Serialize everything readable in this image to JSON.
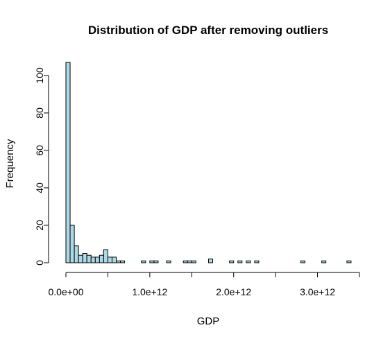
{
  "chart_data": {
    "type": "bar",
    "title": "Distribution of GDP after removing outliers",
    "xlabel": "GDP",
    "ylabel": "Frequency",
    "xlim": [
      0,
      3500000000000.0
    ],
    "ylim": [
      0,
      107
    ],
    "bin_width": 50000000000.0,
    "x_ticks": [
      0,
      500000000000.0,
      1000000000000.0,
      1500000000000.0,
      2000000000000.0,
      2500000000000.0,
      3000000000000.0,
      3500000000000.0
    ],
    "x_tick_labels": [
      {
        "value": 0,
        "label": "0.0e+00"
      },
      {
        "value": 1000000000000.0,
        "label": "1.0e+12"
      },
      {
        "value": 2000000000000.0,
        "label": "2.0e+12"
      },
      {
        "value": 3000000000000.0,
        "label": "3.0e+12"
      }
    ],
    "y_ticks": [
      {
        "value": 0,
        "label": "0"
      },
      {
        "value": 20,
        "label": "20"
      },
      {
        "value": 40,
        "label": "40"
      },
      {
        "value": 60,
        "label": "60"
      },
      {
        "value": 80,
        "label": "80"
      },
      {
        "value": 100,
        "label": "100"
      }
    ],
    "bin_starts": [
      0,
      50000000000.0,
      100000000000.0,
      150000000000.0,
      200000000000.0,
      250000000000.0,
      300000000000.0,
      350000000000.0,
      400000000000.0,
      450000000000.0,
      500000000000.0,
      550000000000.0,
      600000000000.0,
      650000000000.0,
      700000000000.0,
      750000000000.0,
      800000000000.0,
      850000000000.0,
      900000000000.0,
      950000000000.0,
      1000000000000.0,
      1050000000000.0,
      1100000000000.0,
      1150000000000.0,
      1200000000000.0,
      1250000000000.0,
      1300000000000.0,
      1350000000000.0,
      1400000000000.0,
      1450000000000.0,
      1500000000000.0,
      1550000000000.0,
      1600000000000.0,
      1650000000000.0,
      1700000000000.0,
      1750000000000.0,
      1800000000000.0,
      1850000000000.0,
      1900000000000.0,
      1950000000000.0,
      2000000000000.0,
      2050000000000.0,
      2100000000000.0,
      2150000000000.0,
      2200000000000.0,
      2250000000000.0,
      2300000000000.0,
      2350000000000.0,
      2400000000000.0,
      2450000000000.0,
      2500000000000.0,
      2550000000000.0,
      2600000000000.0,
      2650000000000.0,
      2700000000000.0,
      2750000000000.0,
      2800000000000.0,
      2850000000000.0,
      2900000000000.0,
      2950000000000.0,
      3000000000000.0,
      3050000000000.0,
      3100000000000.0,
      3150000000000.0,
      3200000000000.0,
      3250000000000.0,
      3300000000000.0,
      3350000000000.0
    ],
    "values": [
      107,
      20,
      9,
      4,
      5,
      4,
      3,
      3,
      4,
      7,
      3,
      3,
      1,
      1,
      0,
      0,
      0,
      0,
      1,
      0,
      1,
      1,
      0,
      0,
      1,
      0,
      0,
      0,
      1,
      1,
      1,
      0,
      0,
      0,
      2,
      0,
      0,
      0,
      0,
      1,
      0,
      1,
      0,
      1,
      0,
      1,
      0,
      0,
      0,
      0,
      0,
      0,
      0,
      0,
      0,
      0,
      1,
      0,
      0,
      0,
      0,
      1,
      0,
      0,
      0,
      0,
      0,
      1
    ]
  }
}
